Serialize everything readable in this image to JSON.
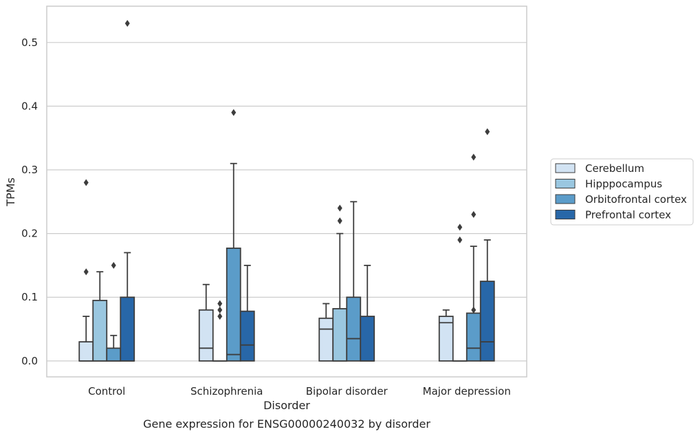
{
  "chart_data": {
    "type": "box",
    "title": "",
    "caption": "Gene expression for ENSG00000240032 by disorder",
    "xlabel": "Disorder",
    "ylabel": "TPMs",
    "ylim": [
      -0.025,
      0.557
    ],
    "yticks": [
      "0.0",
      "0.1",
      "0.2",
      "0.3",
      "0.4",
      "0.5"
    ],
    "grid": true,
    "legend_position": "right",
    "categories": [
      "Control",
      "Schizophrenia",
      "Bipolar disorder",
      "Major depression"
    ],
    "series": [
      {
        "name": "Cerebellum",
        "color": "#d2e3f3",
        "boxes": [
          {
            "q1": 0,
            "median": 0,
            "q3": 0.03,
            "whisker_low": 0,
            "whisker_high": 0.07,
            "outliers": [
              0.14,
              0.28
            ]
          },
          {
            "q1": 0,
            "median": 0.02,
            "q3": 0.08,
            "whisker_low": 0,
            "whisker_high": 0.12,
            "outliers": []
          },
          {
            "q1": 0,
            "median": 0.05,
            "q3": 0.067,
            "whisker_low": 0,
            "whisker_high": 0.09,
            "outliers": []
          },
          {
            "q1": 0,
            "median": 0.06,
            "q3": 0.07,
            "whisker_low": 0,
            "whisker_high": 0.08,
            "outliers": []
          }
        ]
      },
      {
        "name": "Hipppocampus",
        "color": "#9ac7e0",
        "boxes": [
          {
            "q1": 0,
            "median": 0,
            "q3": 0.095,
            "whisker_low": 0,
            "whisker_high": 0.14,
            "outliers": []
          },
          {
            "q1": 0,
            "median": 0,
            "q3": 0,
            "whisker_low": 0,
            "whisker_high": 0,
            "outliers": [
              0.07,
              0.08,
              0.09
            ]
          },
          {
            "q1": 0,
            "median": 0,
            "q3": 0.082,
            "whisker_low": 0,
            "whisker_high": 0.2,
            "outliers": [
              0.22,
              0.24
            ]
          },
          {
            "q1": 0,
            "median": 0,
            "q3": 0,
            "whisker_low": 0,
            "whisker_high": 0,
            "outliers": [
              0.19,
              0.21
            ]
          }
        ]
      },
      {
        "name": "Orbitofrontal cortex",
        "color": "#5b9cc9",
        "boxes": [
          {
            "q1": 0,
            "median": 0,
            "q3": 0.02,
            "whisker_low": 0,
            "whisker_high": 0.04,
            "outliers": [
              0.15
            ]
          },
          {
            "q1": 0,
            "median": 0.01,
            "q3": 0.177,
            "whisker_low": 0,
            "whisker_high": 0.31,
            "outliers": [
              0.39
            ]
          },
          {
            "q1": 0,
            "median": 0.035,
            "q3": 0.1,
            "whisker_low": 0,
            "whisker_high": 0.25,
            "outliers": []
          },
          {
            "q1": 0,
            "median": 0.02,
            "q3": 0.075,
            "whisker_low": 0,
            "whisker_high": 0.18,
            "outliers": [
              0.08,
              0.23,
              0.32
            ]
          }
        ]
      },
      {
        "name": "Prefrontal cortex",
        "color": "#2867a8",
        "boxes": [
          {
            "q1": 0,
            "median": 0,
            "q3": 0.1,
            "whisker_low": 0,
            "whisker_high": 0.17,
            "outliers": [
              0.53
            ]
          },
          {
            "q1": 0,
            "median": 0.025,
            "q3": 0.078,
            "whisker_low": 0,
            "whisker_high": 0.15,
            "outliers": []
          },
          {
            "q1": 0,
            "median": 0,
            "q3": 0.07,
            "whisker_low": 0,
            "whisker_high": 0.15,
            "outliers": []
          },
          {
            "q1": 0,
            "median": 0.03,
            "q3": 0.125,
            "whisker_low": 0,
            "whisker_high": 0.19,
            "outliers": [
              0.36
            ]
          }
        ]
      }
    ]
  }
}
